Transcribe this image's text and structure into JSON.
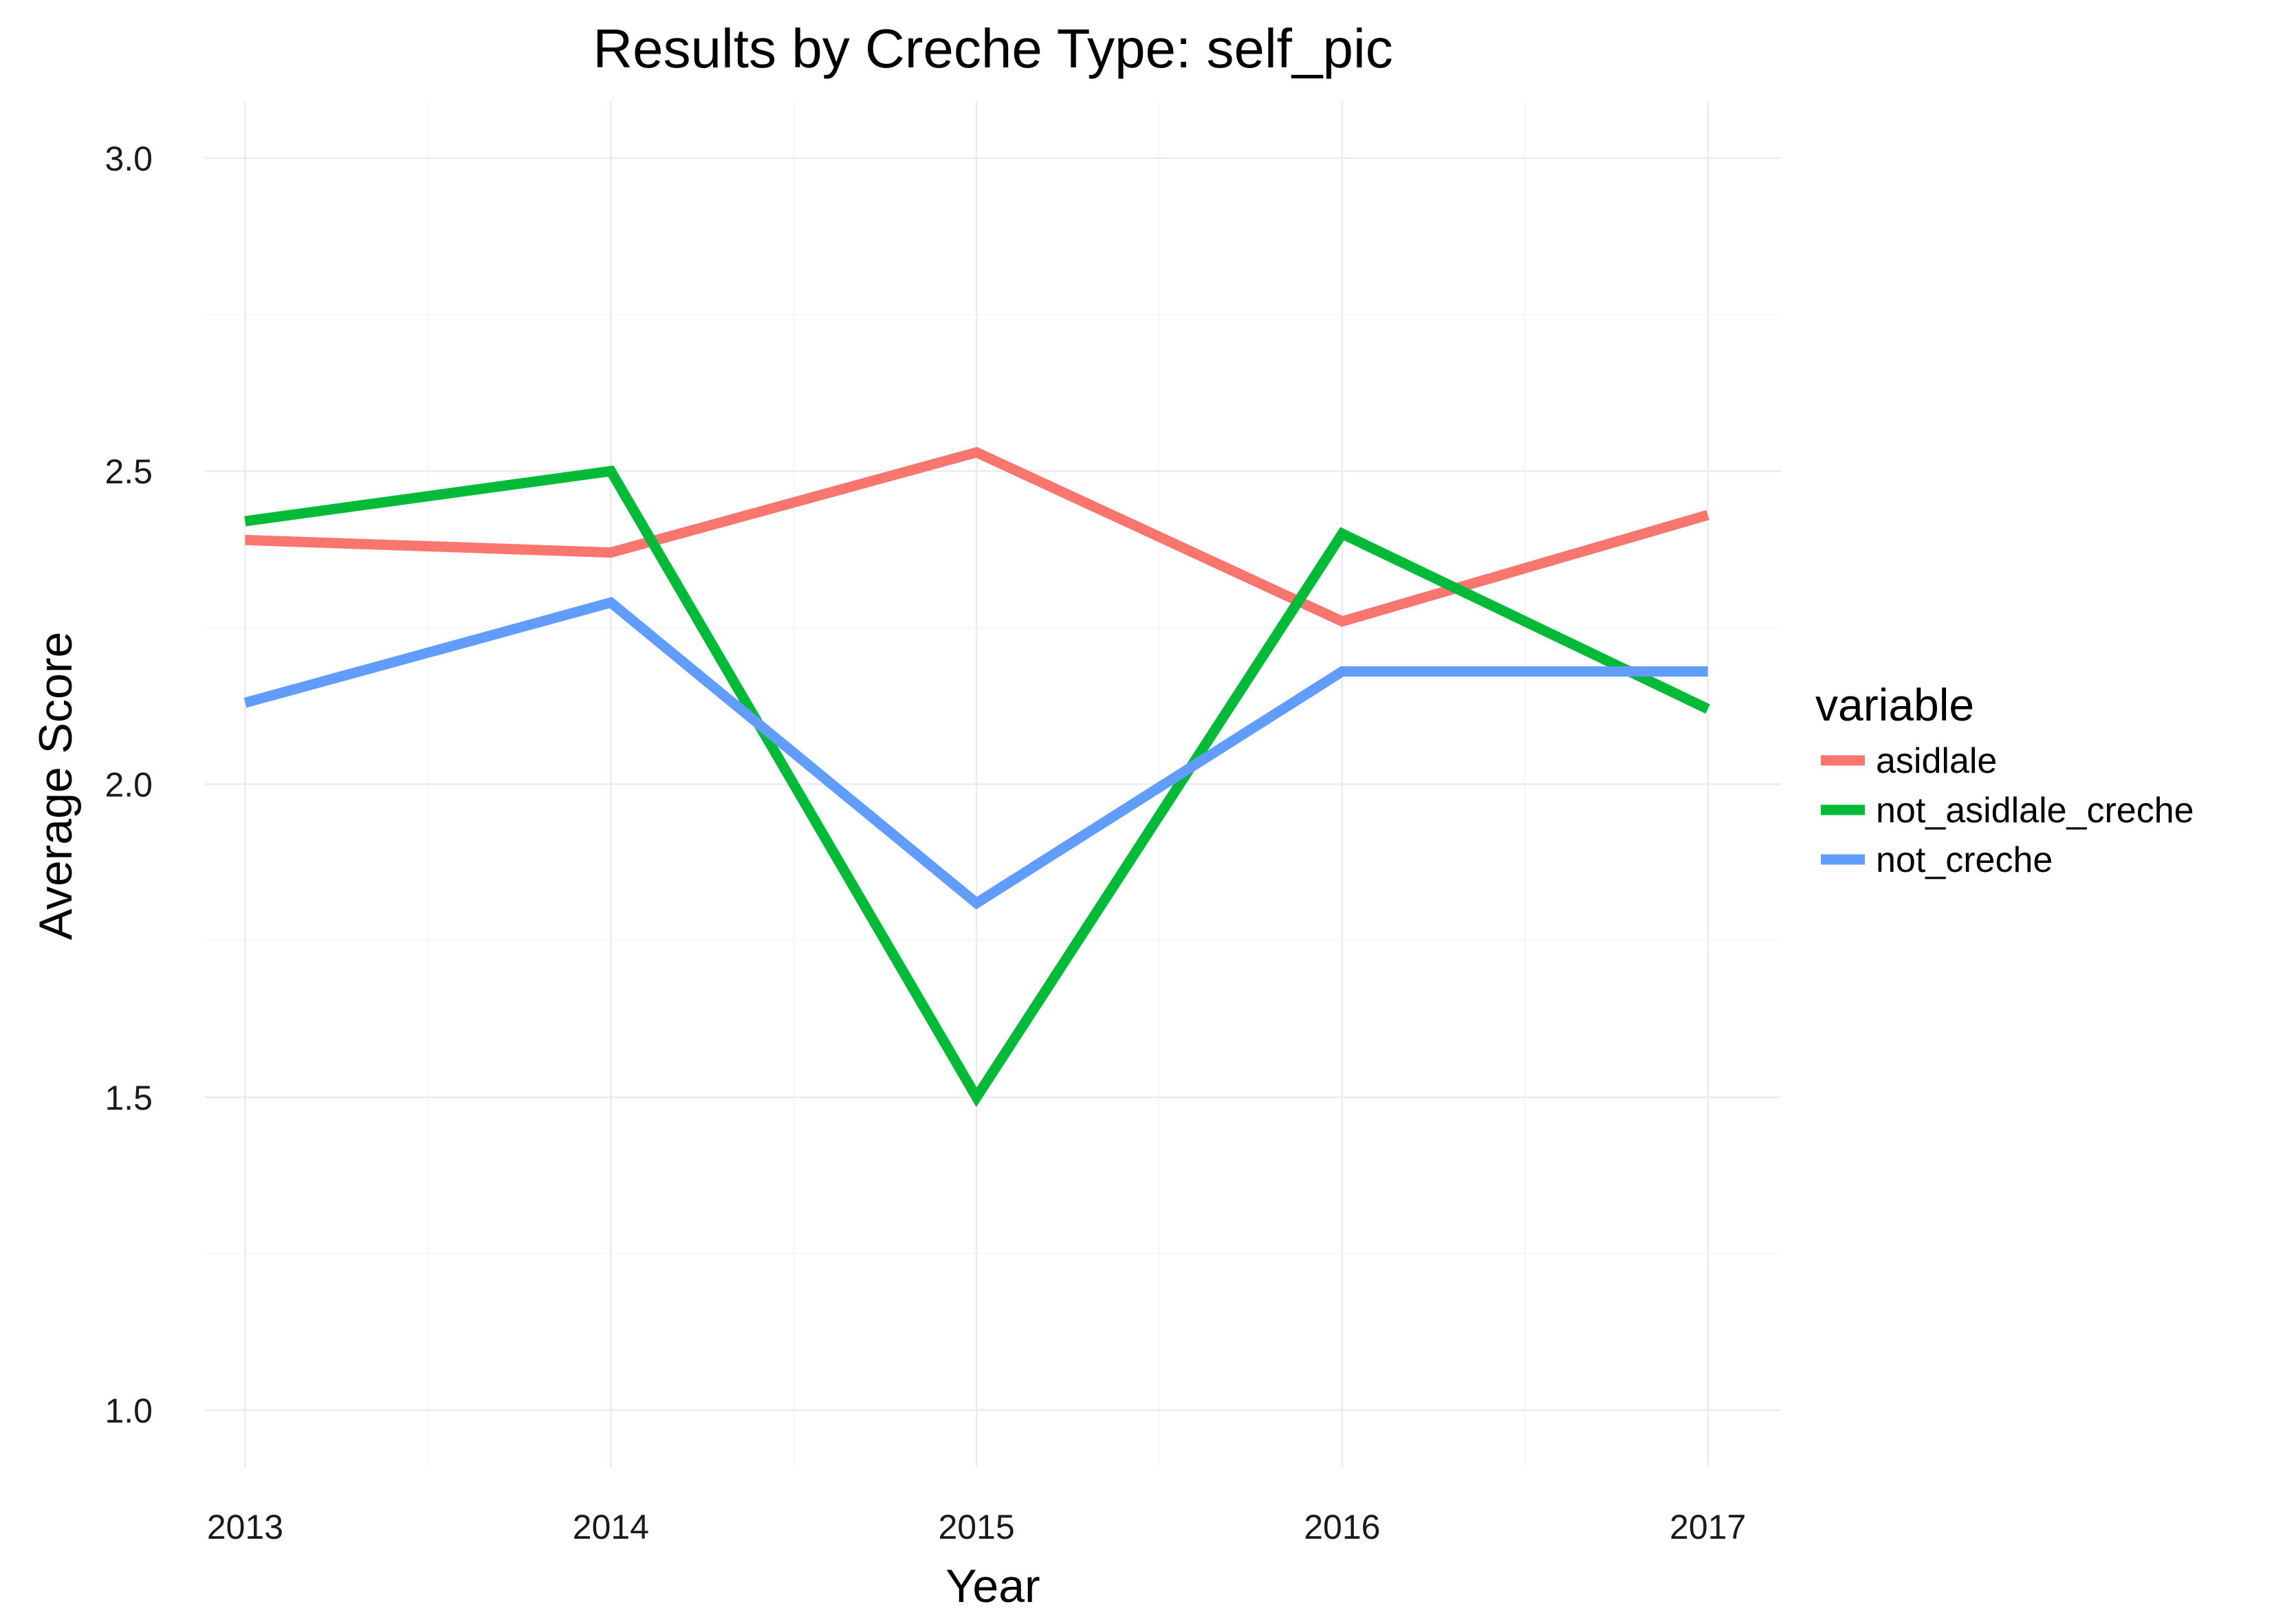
{
  "chart_data": {
    "type": "line",
    "title": "Results by Creche Type: self_pic",
    "xlabel": "Year",
    "ylabel": "Average Score",
    "x": [
      2013,
      2014,
      2015,
      2016,
      2017
    ],
    "x_tick_labels": [
      "2013",
      "2014",
      "2015",
      "2016",
      "2017"
    ],
    "xlim": [
      2012.89,
      2017.2
    ],
    "ylim": [
      0.91,
      3.09
    ],
    "y_ticks": [
      1.0,
      1.5,
      2.0,
      2.5,
      3.0
    ],
    "y_tick_labels": [
      "1.0",
      "1.5",
      "2.0",
      "2.5",
      "3.0"
    ],
    "grid": true,
    "legend": {
      "title": "variable",
      "position": "right"
    },
    "series": [
      {
        "name": "asidlale",
        "color": "#F8766D",
        "values": [
          2.39,
          2.37,
          2.53,
          2.26,
          2.43
        ]
      },
      {
        "name": "not_asidlale_creche",
        "color": "#00BA38",
        "values": [
          2.42,
          2.5,
          1.5,
          2.4,
          2.12
        ]
      },
      {
        "name": "not_creche",
        "color": "#619CFF",
        "values": [
          2.13,
          2.29,
          1.81,
          2.18,
          2.18
        ]
      }
    ]
  }
}
